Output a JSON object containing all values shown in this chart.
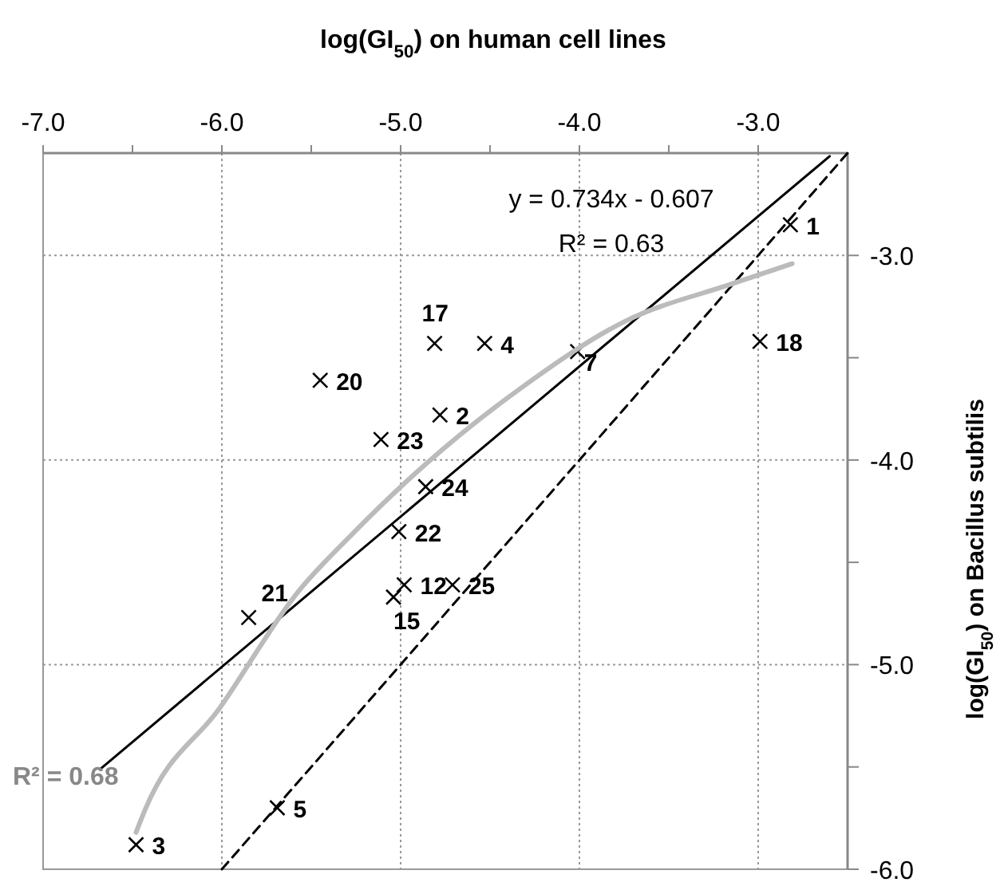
{
  "chart_data": {
    "type": "scatter",
    "xlabel": "log(GI$_{50}$) on human cell lines",
    "ylabel": "log(GI$_{50}$) on Bacillus subtilis",
    "xlim": [
      -7,
      -2.5
    ],
    "ylim": [
      -6,
      -2.5
    ],
    "xticks": [
      {
        "value": -7,
        "label": "-7.0"
      },
      {
        "value": -6.5,
        "label": null
      },
      {
        "value": -6,
        "label": "-6.0"
      },
      {
        "value": -5.5,
        "label": null
      },
      {
        "value": -5,
        "label": "-5.0"
      },
      {
        "value": -4.5,
        "label": null
      },
      {
        "value": -4,
        "label": "-4.0"
      },
      {
        "value": -3.5,
        "label": null
      },
      {
        "value": -3,
        "label": "-3.0"
      }
    ],
    "yticks": [
      {
        "value": -6,
        "label": "-6.0"
      },
      {
        "value": -5.5,
        "label": null
      },
      {
        "value": -5,
        "label": "-5.0"
      },
      {
        "value": -4.5,
        "label": null
      },
      {
        "value": -4,
        "label": "-4.0"
      },
      {
        "value": -3.5,
        "label": null
      },
      {
        "value": -3,
        "label": "-3.0"
      }
    ],
    "grid": true,
    "series": [
      {
        "marker": "cross",
        "color": "#000000",
        "x": [
          -2.82,
          -4.78,
          -6.48,
          -4.53,
          -5.69,
          -4.01,
          -4.98,
          -5.04,
          -4.81,
          -2.99,
          -5.45,
          -5.85,
          -5.01,
          -5.11,
          -4.86,
          -4.71
        ],
        "values": [
          -2.85,
          -3.78,
          -5.88,
          -3.43,
          -5.7,
          -3.47,
          -4.61,
          -4.67,
          -3.43,
          -3.42,
          -3.61,
          -4.77,
          -4.35,
          -3.9,
          -4.13,
          -4.61
        ]
      },
      {
        "type": "line",
        "line_style": "solid",
        "color": "#000000",
        "x": [
          -6.68,
          -2.6
        ],
        "values": [
          -5.51,
          -2.515
        ]
      },
      {
        "type": "line",
        "line_style": "dashed",
        "color": "#000000",
        "x": [
          -6,
          -2.5
        ],
        "values": [
          -6,
          -2.5
        ]
      },
      {
        "type": "line",
        "line_style": "solid",
        "color": "#bbbbbb",
        "x": [
          -6.48,
          -6.43,
          -6.01,
          -5.57,
          -5.28,
          -4.86,
          -4.33,
          -3.74,
          -3.15,
          -2.81
        ],
        "values": [
          -5.82,
          -5.71,
          -5.21,
          -4.64,
          -4.37,
          -4.02,
          -3.65,
          -3.32,
          -3.14,
          -3.04
        ]
      }
    ],
    "annotations": [
      "y = 0.734x - 0.607",
      "R² = 0.63",
      "R² = 0.68",
      {
        "text": "1",
        "x": -2.82,
        "y": -2.85
      },
      {
        "text": "2",
        "x": -4.78,
        "y": -3.78
      },
      {
        "text": "3",
        "x": -6.48,
        "y": -5.88
      },
      {
        "text": "4",
        "x": -4.53,
        "y": -3.43
      },
      {
        "text": "5",
        "x": -5.69,
        "y": -5.7
      },
      {
        "text": "7",
        "x": -4.01,
        "y": -3.47
      },
      {
        "text": "12",
        "x": -4.98,
        "y": -4.61
      },
      {
        "text": "15",
        "x": -5.04,
        "y": -4.67
      },
      {
        "text": "17",
        "x": -4.81,
        "y": -3.43
      },
      {
        "text": "18",
        "x": -2.99,
        "y": -3.42
      },
      {
        "text": "20",
        "x": -5.45,
        "y": -3.61
      },
      {
        "text": "21",
        "x": -5.85,
        "y": -4.77
      },
      {
        "text": "22",
        "x": -5.01,
        "y": -4.35
      },
      {
        "text": "23",
        "x": -5.11,
        "y": -3.9
      },
      {
        "text": "24",
        "x": -4.86,
        "y": -4.13
      },
      {
        "text": "25",
        "x": -4.71,
        "y": -4.61
      }
    ]
  }
}
